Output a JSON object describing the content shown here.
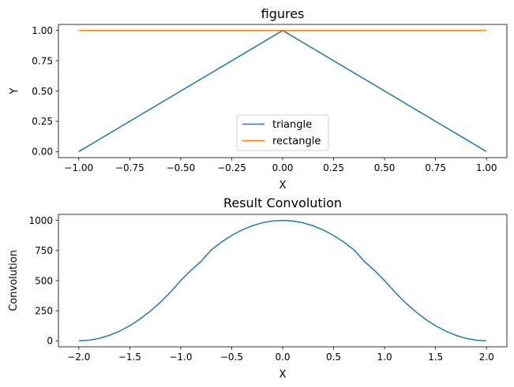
{
  "chart_data": [
    {
      "type": "line",
      "title": "figures",
      "xlabel": "X",
      "ylabel": "Y",
      "xlim": [
        -1.1,
        1.1
      ],
      "ylim": [
        -0.05,
        1.05
      ],
      "xticks": [
        -1.0,
        -0.75,
        -0.5,
        -0.25,
        0.0,
        0.25,
        0.5,
        0.75,
        1.0
      ],
      "xtick_labels": [
        "−1.00",
        "−0.75",
        "−0.50",
        "−0.25",
        "0.00",
        "0.25",
        "0.50",
        "0.75",
        "1.00"
      ],
      "yticks": [
        0.0,
        0.25,
        0.5,
        0.75,
        1.0
      ],
      "ytick_labels": [
        "0.00",
        "0.25",
        "0.50",
        "0.75",
        "1.00"
      ],
      "grid": false,
      "legend_position": "lower-center",
      "series": [
        {
          "name": "triangle",
          "color": "#1f77b4",
          "x": [
            -1.0,
            0.0,
            1.0
          ],
          "y": [
            0.0,
            1.0,
            0.0
          ]
        },
        {
          "name": "rectangle",
          "color": "#ff7f0e",
          "x": [
            -1.0,
            1.0
          ],
          "y": [
            1.0,
            1.0
          ]
        }
      ]
    },
    {
      "type": "line",
      "title": "Result Convolution",
      "xlabel": "X",
      "ylabel": "Convolution",
      "xlim": [
        -2.2,
        2.2
      ],
      "ylim": [
        -50,
        1050
      ],
      "xticks": [
        -2.0,
        -1.5,
        -1.0,
        -0.5,
        0.0,
        0.5,
        1.0,
        1.5,
        2.0
      ],
      "xtick_labels": [
        "−2.0",
        "−1.5",
        "−1.0",
        "−0.5",
        "0.0",
        "0.5",
        "1.0",
        "1.5",
        "2.0"
      ],
      "yticks": [
        0,
        250,
        500,
        750,
        1000
      ],
      "ytick_labels": [
        "0",
        "250",
        "500",
        "750",
        "1000"
      ],
      "grid": false,
      "series": [
        {
          "color": "#1f77b4",
          "x": [
            -2.0,
            -1.9,
            -1.8,
            -1.7,
            -1.6,
            -1.5,
            -1.4,
            -1.3,
            -1.2,
            -1.1,
            -1.0,
            -0.9,
            -0.8,
            -0.7,
            -0.6,
            -0.5,
            -0.4,
            -0.3,
            -0.2,
            -0.1,
            0.0,
            0.1,
            0.2,
            0.3,
            0.4,
            0.5,
            0.6,
            0.7,
            0.8,
            0.9,
            1.0,
            1.1,
            1.2,
            1.3,
            1.4,
            1.5,
            1.6,
            1.7,
            1.8,
            1.9,
            2.0
          ],
          "y": [
            0,
            5,
            20,
            45,
            80,
            125,
            180,
            245,
            320,
            405,
            500,
            585,
            660,
            755,
            820,
            875,
            920,
            955,
            980,
            995,
            1000,
            995,
            980,
            955,
            920,
            875,
            820,
            755,
            660,
            585,
            500,
            405,
            320,
            245,
            180,
            125,
            80,
            45,
            20,
            5,
            0
          ]
        }
      ]
    }
  ]
}
